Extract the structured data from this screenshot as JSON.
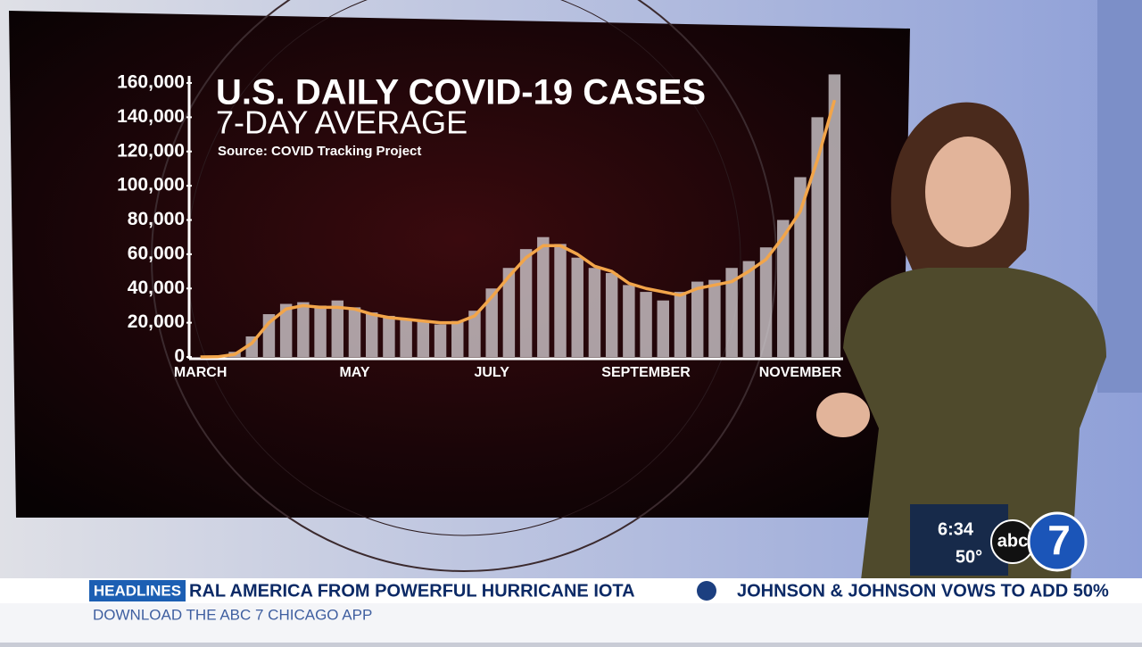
{
  "chart_data": {
    "type": "bar-line",
    "title": "U.S. DAILY COVID-19 CASES",
    "subtitle": "7-DAY AVERAGE",
    "source": "Source: COVID Tracking Project",
    "categories": [
      "MARCH",
      null,
      null,
      null,
      null,
      null,
      null,
      null,
      null,
      "MAY",
      null,
      null,
      null,
      null,
      null,
      null,
      null,
      "JULY",
      null,
      null,
      null,
      null,
      null,
      null,
      null,
      null,
      "SEPTEMBER",
      null,
      null,
      null,
      null,
      null,
      null,
      null,
      null,
      "NOVEMBER",
      null,
      null
    ],
    "series": [
      {
        "type": "bar",
        "color": "#d9d4d8",
        "values": [
          0,
          300,
          3000,
          12000,
          25000,
          31000,
          32000,
          30000,
          33000,
          29000,
          26000,
          24000,
          22000,
          21000,
          19000,
          21000,
          27000,
          40000,
          52000,
          63000,
          70000,
          66000,
          58000,
          52000,
          49000,
          42000,
          38000,
          33000,
          38000,
          44000,
          45000,
          52000,
          56000,
          64000,
          80000,
          105000,
          140000,
          165000
        ]
      },
      {
        "type": "line",
        "color": "#f2a54a",
        "values": [
          0,
          100,
          1500,
          8000,
          20000,
          28000,
          30000,
          29000,
          29000,
          28000,
          25000,
          23000,
          22000,
          21000,
          20000,
          20000,
          24000,
          35000,
          47000,
          58000,
          65000,
          65000,
          60000,
          53000,
          50000,
          43000,
          40000,
          38000,
          36000,
          40000,
          42000,
          44000,
          50000,
          57000,
          70000,
          85000,
          115000,
          150000
        ]
      }
    ],
    "ylim": [
      0,
      160000
    ],
    "yticks": [
      0,
      {
        "value": 20000,
        "label": "20,000"
      },
      {
        "value": 40000,
        "label": "40,000"
      },
      {
        "value": 60000,
        "label": "60,000"
      },
      {
        "value": 80000,
        "label": "80,000"
      },
      {
        "value": 100000,
        "label": "100,000"
      },
      {
        "value": 120000,
        "label": "120,000"
      },
      {
        "value": 140000,
        "label": "140,000"
      },
      {
        "value": 160000,
        "label": "160,000"
      }
    ]
  },
  "ticker": {
    "label": "HEADLINES",
    "items": [
      "RAL AMERICA FROM POWERFUL HURRICANE IOTA",
      "JOHNSON & JOHNSON VOWS TO ADD 50%"
    ],
    "subline": "DOWNLOAD THE ABC 7 CHICAGO APP"
  },
  "bug": {
    "time": "6:34",
    "temperature": "50°",
    "network": "abc",
    "channel": "7"
  }
}
